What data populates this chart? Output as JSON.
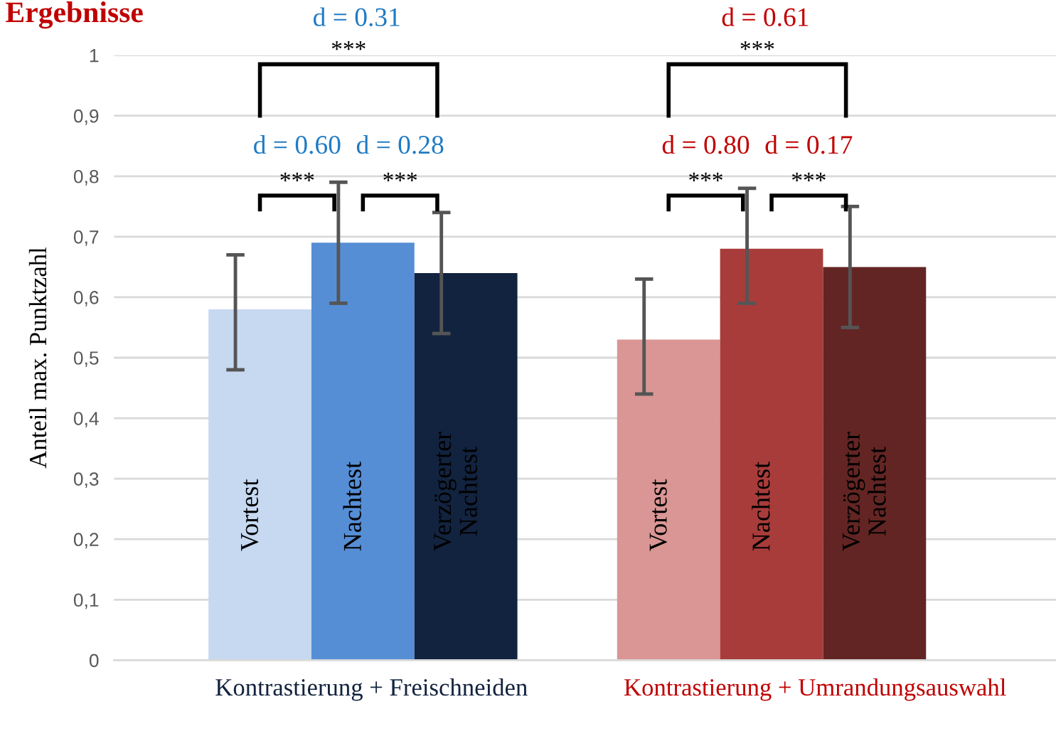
{
  "chart_data": {
    "type": "bar",
    "title": "Ergebnisse",
    "ylabel": "Anteil max. Punktzahl",
    "categories": [
      "Kontrastierung + Freischneiden",
      "Kontrastierung + Umrandungsauswahl"
    ],
    "series": [
      {
        "name": "Vortest",
        "colors": [
          "#c6d9f1",
          "#d99694"
        ],
        "values": [
          0.58,
          0.53
        ],
        "errors": [
          [
            0.48,
            0.67
          ],
          [
            0.44,
            0.63
          ]
        ]
      },
      {
        "name": "Nachtest",
        "colors": [
          "#558ed5",
          "#a83c3a"
        ],
        "values": [
          0.69,
          0.68
        ],
        "errors": [
          [
            0.59,
            0.79
          ],
          [
            0.59,
            0.78
          ]
        ]
      },
      {
        "name": "Verzögerter Nachtest",
        "colors": [
          "#12233f",
          "#632523"
        ],
        "values": [
          0.64,
          0.65
        ],
        "errors": [
          [
            0.54,
            0.74
          ],
          [
            0.55,
            0.75
          ]
        ]
      }
    ],
    "annotations": [
      "d = 0.60",
      "***",
      "d = 0.28",
      "***",
      "d = 0.31",
      "***",
      "d = 0.80",
      "***",
      "d = 0.17",
      "***",
      "d = 0.61",
      "***"
    ],
    "ylim": [
      0,
      1
    ],
    "yticks": [
      0,
      {
        "value": 0.1,
        "label": "0,1"
      },
      {
        "value": 0.2,
        "label": "0,2"
      },
      {
        "value": 0.3,
        "label": "0,3"
      },
      {
        "value": 0.4,
        "label": "0,4"
      },
      {
        "value": 0.5,
        "label": "0,5"
      },
      {
        "value": 0.6,
        "label": "0,6"
      },
      {
        "value": 0.7,
        "label": "0,7"
      },
      {
        "value": 0.8,
        "label": "0,8"
      },
      {
        "value": 0.9,
        "label": "0,9"
      },
      1
    ],
    "grid": "y"
  }
}
